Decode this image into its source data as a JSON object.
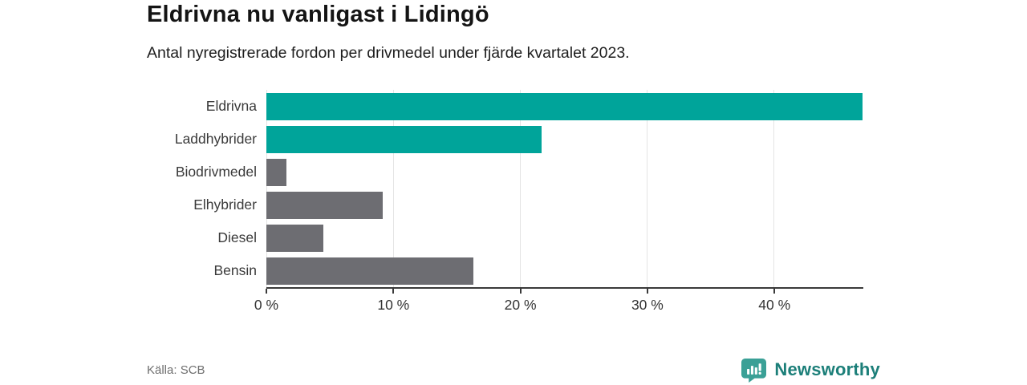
{
  "header": {
    "title": "Eldrivna nu vanligast i Lidingö",
    "subtitle": "Antal nyregistrerade fordon per drivmedel under fjärde kvartalet 2023."
  },
  "footer": {
    "source": "Källa: SCB",
    "brand": "Newsworthy"
  },
  "colors": {
    "accent_teal": "#00a49a",
    "bar_gray": "#6d6d72",
    "axis": "#3a3a3a",
    "gridline": "#e4e4e4",
    "brand_teal": "#1c7f79",
    "logo_bubble_teal": "#3aa096"
  },
  "chart_data": {
    "type": "bar",
    "orientation": "horizontal",
    "title": "Eldrivna nu vanligast i Lidingö",
    "subtitle": "Antal nyregistrerade fordon per drivmedel under fjärde kvartalet 2023.",
    "categories": [
      "Eldrivna",
      "Laddhybrider",
      "Biodrivmedel",
      "Elhybrider",
      "Diesel",
      "Bensin"
    ],
    "values": [
      47.0,
      21.7,
      1.6,
      9.2,
      4.5,
      16.3
    ],
    "unit": "%",
    "bar_colors": [
      "#00a49a",
      "#00a49a",
      "#6d6d72",
      "#6d6d72",
      "#6d6d72",
      "#6d6d72"
    ],
    "xlabel": "",
    "ylabel": "",
    "xlim": [
      0,
      47
    ],
    "x_ticks": [
      0,
      10,
      20,
      30,
      40
    ],
    "x_tick_labels": [
      "0 %",
      "10 %",
      "20 %",
      "30 %",
      "40 %"
    ],
    "grid": "vertical-light",
    "legend": "none"
  }
}
